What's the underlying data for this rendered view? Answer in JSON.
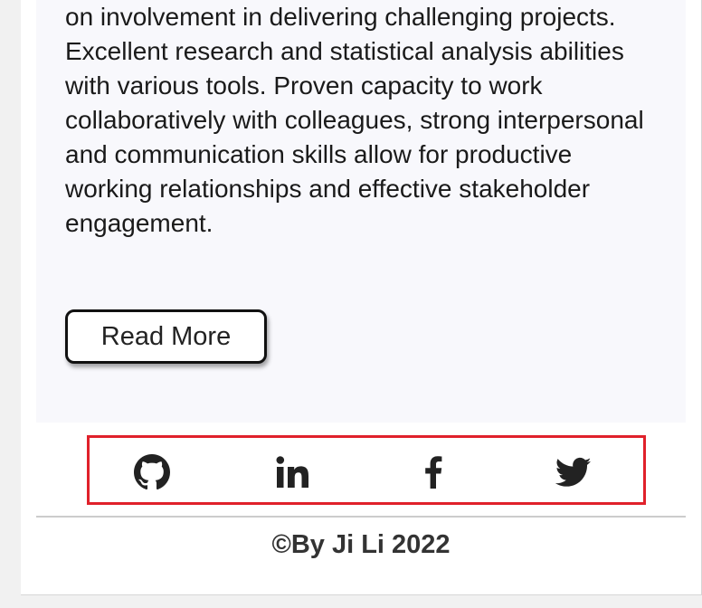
{
  "about": {
    "text": "on involvement in delivering challenging projects. Excellent research and statistical analysis abilities with various tools. Proven capacity to work collaboratively with colleagues, strong interpersonal and communication skills allow for productive working relationships and effective stakeholder engagement.",
    "read_more_label": "Read More"
  },
  "social": {
    "links": [
      {
        "icon": "github-icon"
      },
      {
        "icon": "linkedin-icon"
      },
      {
        "icon": "facebook-icon"
      },
      {
        "icon": "twitter-icon"
      }
    ],
    "highlight_color": "#e0212b"
  },
  "footer": {
    "copyright": "©By Ji Li 2022"
  }
}
